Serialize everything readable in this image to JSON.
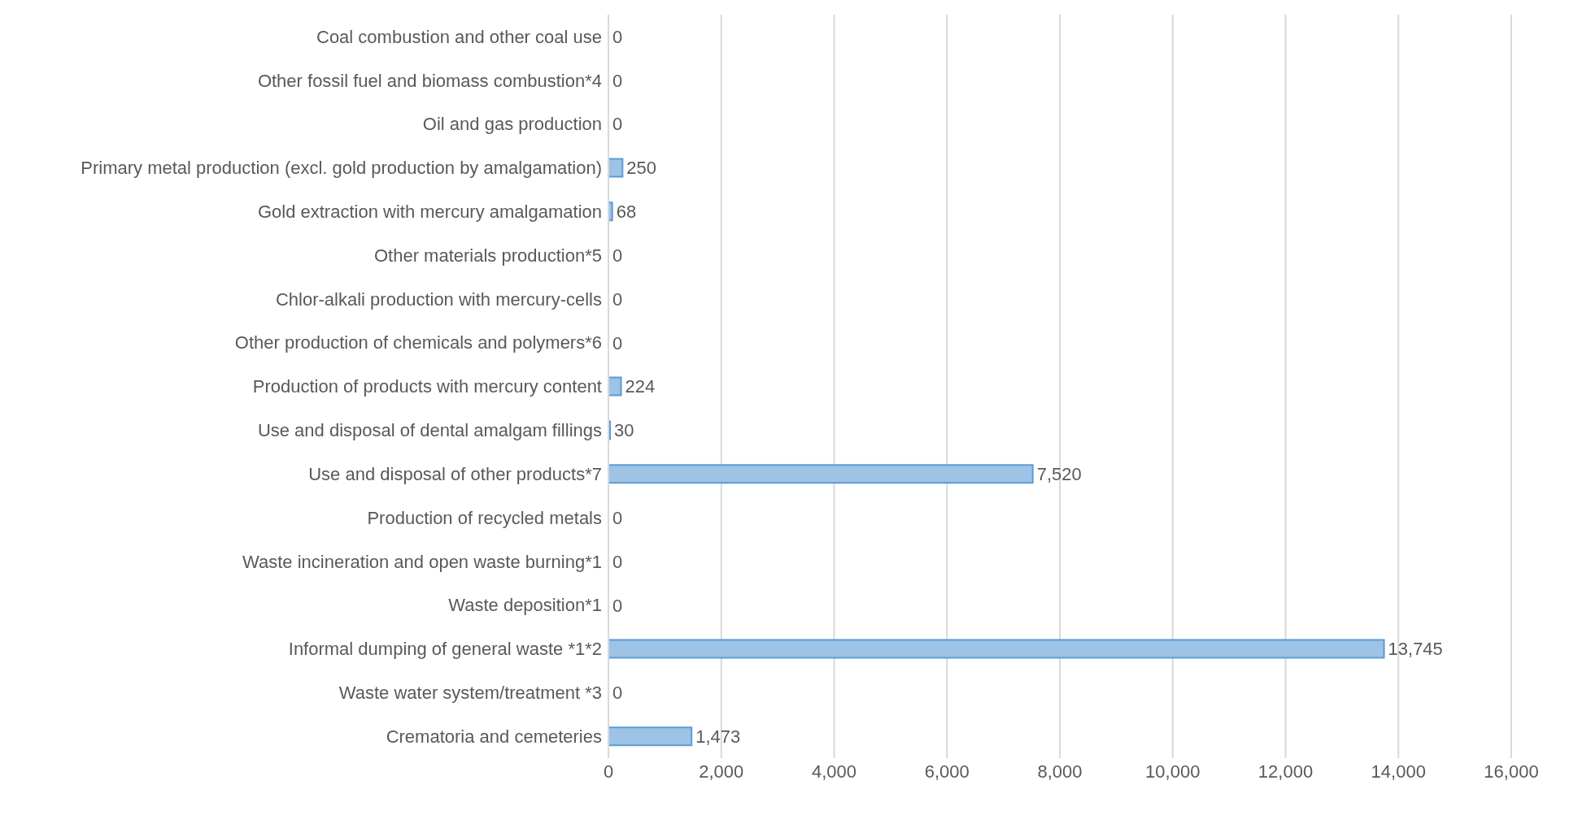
{
  "chart_data": {
    "type": "bar",
    "orientation": "horizontal",
    "categories": [
      "Coal combustion and other coal use",
      "Other fossil fuel and biomass combustion*4",
      "Oil and gas production",
      "Primary metal production (excl. gold production by amalgamation)",
      "Gold extraction with mercury amalgamation",
      "Other materials production*5",
      "Chlor-alkali production with mercury-cells",
      "Other production of chemicals and polymers*6",
      "Production of products with mercury content",
      "Use and disposal of dental amalgam fillings",
      "Use and disposal of other products*7",
      "Production of recycled metals",
      "Waste incineration and open waste burning*1",
      "Waste deposition*1",
      "Informal dumping of general waste *1*2",
      "Waste water system/treatment *3",
      "Crematoria and cemeteries"
    ],
    "values": [
      0,
      0,
      0,
      250,
      68,
      0,
      0,
      0,
      224,
      30,
      7520,
      0,
      0,
      0,
      13745,
      0,
      1473
    ],
    "value_labels": [
      "0",
      "0",
      "0",
      "250",
      "68",
      "0",
      "0",
      "0",
      "224",
      "30",
      "7,520",
      "0",
      "0",
      "0",
      "13,745",
      "0",
      "1,473"
    ],
    "color": "#9dc3e6",
    "xlim": [
      0,
      16000
    ],
    "xticks": [
      0,
      {
        "value": 2000,
        "label": "2,000"
      },
      {
        "value": 4000,
        "label": "4,000"
      },
      {
        "value": 6000,
        "label": "6,000"
      },
      {
        "value": 8000,
        "label": "8,000"
      },
      {
        "value": 10000,
        "label": "10,000"
      },
      {
        "value": 12000,
        "label": "12,000"
      },
      {
        "value": 14000,
        "label": "14,000"
      },
      {
        "value": 16000,
        "label": "16,000"
      }
    ],
    "grid": "x"
  }
}
